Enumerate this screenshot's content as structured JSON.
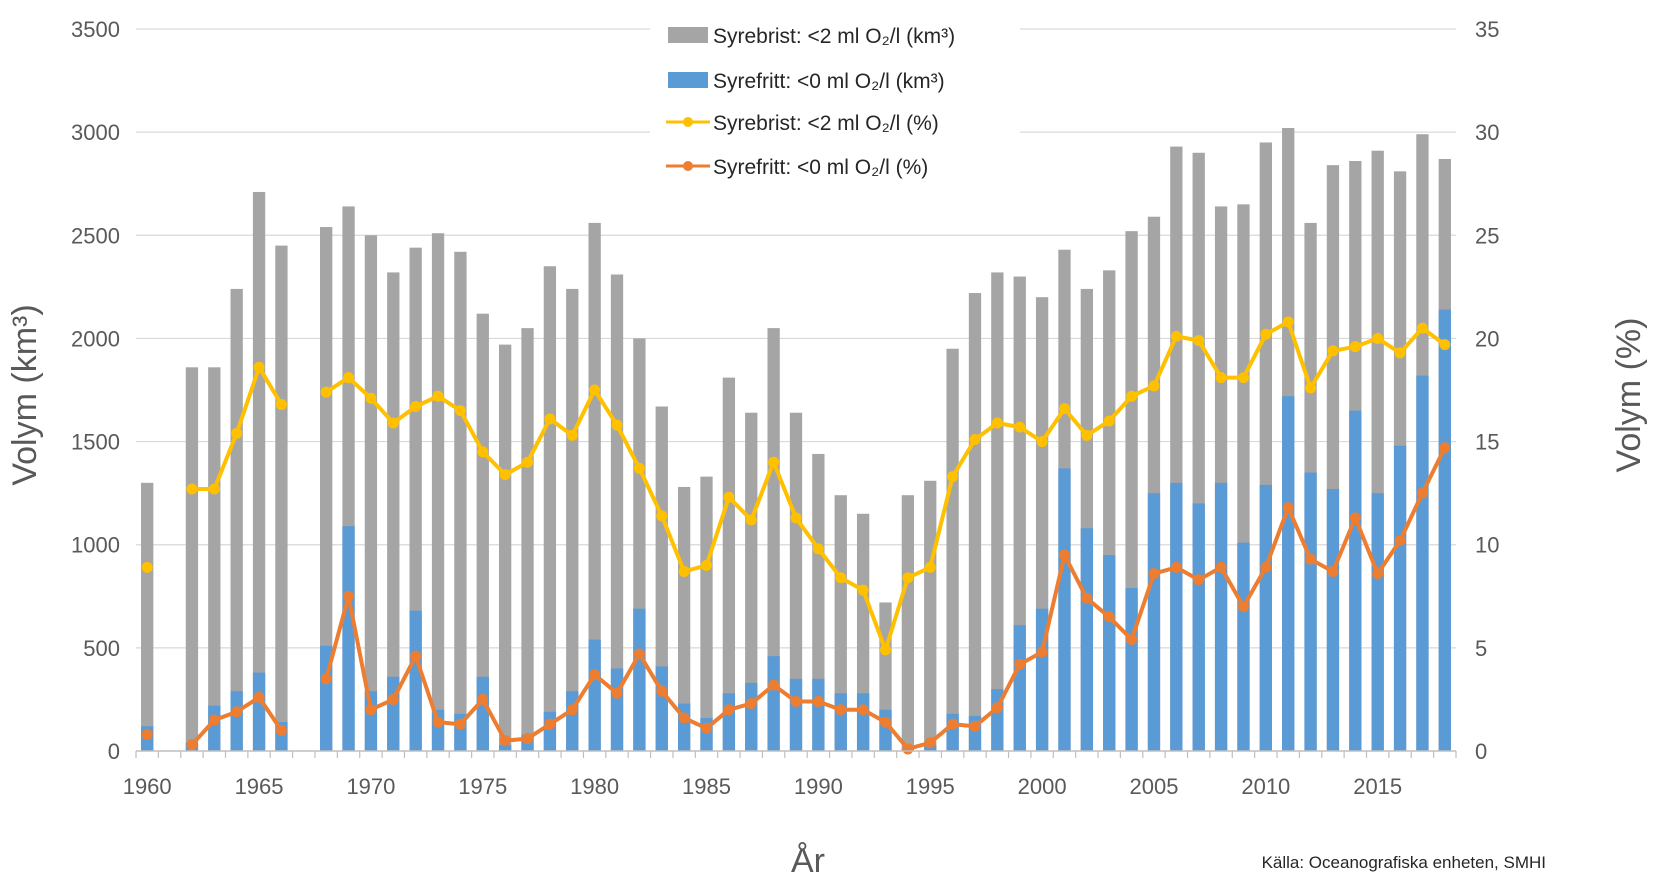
{
  "chart_data": {
    "type": "bar",
    "xlabel": "År",
    "ylabel_left": "Volym (km³)",
    "ylabel_right": "Volym (%)",
    "ylim_left": [
      0,
      3500
    ],
    "ylim_right": [
      0,
      35
    ],
    "yticks_left": [
      "0",
      "500",
      "1000",
      "1500",
      "2000",
      "2500",
      "3000",
      "3500"
    ],
    "yticks_right": [
      "0",
      "5",
      "10",
      "15",
      "20",
      "25",
      "30",
      "35"
    ],
    "xticks": [
      "1960",
      "1965",
      "1970",
      "1975",
      "1980",
      "1985",
      "1990",
      "1995",
      "2000",
      "2005",
      "2010",
      "2015"
    ],
    "grid": true,
    "legend_position": "top-center",
    "source": "Källa: Oceanografiska enheten, SMHI",
    "years": [
      1960,
      1961,
      1962,
      1963,
      1964,
      1965,
      1966,
      1967,
      1968,
      1969,
      1970,
      1971,
      1972,
      1973,
      1974,
      1975,
      1976,
      1977,
      1978,
      1979,
      1980,
      1981,
      1982,
      1983,
      1984,
      1985,
      1986,
      1987,
      1988,
      1989,
      1990,
      1991,
      1992,
      1993,
      1994,
      1995,
      1996,
      1997,
      1998,
      1999,
      2000,
      2001,
      2002,
      2003,
      2004,
      2005,
      2006,
      2007,
      2008,
      2009,
      2010,
      2011,
      2012,
      2013,
      2014,
      2015,
      2016,
      2017,
      2018
    ],
    "series": [
      {
        "name": "Syrebrist: <2 ml O₂/l (km³)",
        "kind": "bar",
        "axis": "left",
        "color": "#a5a5a5",
        "values": [
          1300,
          null,
          1860,
          1860,
          2240,
          2710,
          2450,
          null,
          2540,
          2640,
          2500,
          2320,
          2440,
          2510,
          2420,
          2120,
          1970,
          2050,
          2350,
          2240,
          2560,
          2310,
          2000,
          1670,
          1280,
          1330,
          1810,
          1640,
          2050,
          1640,
          1440,
          1240,
          1150,
          720,
          1240,
          1310,
          1950,
          2220,
          2320,
          2300,
          2200,
          2430,
          2240,
          2330,
          2520,
          2590,
          2930,
          2900,
          2640,
          2650,
          2950,
          3020,
          2560,
          2840,
          2860,
          2910,
          2810,
          2990,
          2870
        ]
      },
      {
        "name": "Syrefritt: <0 ml O₂/l (km³)",
        "kind": "bar",
        "axis": "left",
        "color": "#5b9bd5",
        "values": [
          120,
          null,
          40,
          220,
          290,
          380,
          140,
          null,
          510,
          1090,
          290,
          360,
          680,
          200,
          180,
          360,
          30,
          80,
          190,
          290,
          540,
          400,
          690,
          410,
          230,
          160,
          280,
          330,
          460,
          350,
          350,
          280,
          280,
          200,
          10,
          30,
          180,
          170,
          300,
          610,
          690,
          1370,
          1080,
          950,
          790,
          1250,
          1300,
          1200,
          1300,
          1010,
          1290,
          1720,
          1350,
          1270,
          1650,
          1250,
          1480,
          1820,
          2140
        ]
      },
      {
        "name": "Syrebrist: <2 ml O₂/l (%)",
        "kind": "line",
        "axis": "right",
        "color": "#ffc000",
        "values": [
          8.9,
          null,
          12.7,
          12.7,
          15.4,
          18.6,
          16.8,
          null,
          17.4,
          18.1,
          17.1,
          15.9,
          16.7,
          17.2,
          16.5,
          14.5,
          13.4,
          14.0,
          16.1,
          15.3,
          17.5,
          15.8,
          13.7,
          11.4,
          8.7,
          9.0,
          12.3,
          11.2,
          14.0,
          11.3,
          9.8,
          8.4,
          7.8,
          4.9,
          8.4,
          8.9,
          13.3,
          15.1,
          15.9,
          15.7,
          15.0,
          16.6,
          15.3,
          16.0,
          17.2,
          17.7,
          20.1,
          19.9,
          18.1,
          18.1,
          20.2,
          20.8,
          17.6,
          19.4,
          19.6,
          20.0,
          19.3,
          20.5,
          19.7
        ]
      },
      {
        "name": "Syrefritt: <0 ml O₂/l (%)",
        "kind": "line",
        "axis": "right",
        "color": "#ed7d31",
        "values": [
          0.8,
          null,
          0.3,
          1.5,
          1.9,
          2.6,
          1.0,
          null,
          3.5,
          7.5,
          2.0,
          2.5,
          4.6,
          1.4,
          1.3,
          2.5,
          0.5,
          0.6,
          1.3,
          2.0,
          3.7,
          2.8,
          4.7,
          2.9,
          1.6,
          1.1,
          2.0,
          2.3,
          3.2,
          2.4,
          2.4,
          2.0,
          2.0,
          1.4,
          0.1,
          0.4,
          1.3,
          1.2,
          2.1,
          4.2,
          4.8,
          9.5,
          7.4,
          6.5,
          5.4,
          8.6,
          8.9,
          8.3,
          8.9,
          7.0,
          8.9,
          11.8,
          9.3,
          8.7,
          11.3,
          8.6,
          10.2,
          12.5,
          14.7
        ]
      }
    ]
  }
}
